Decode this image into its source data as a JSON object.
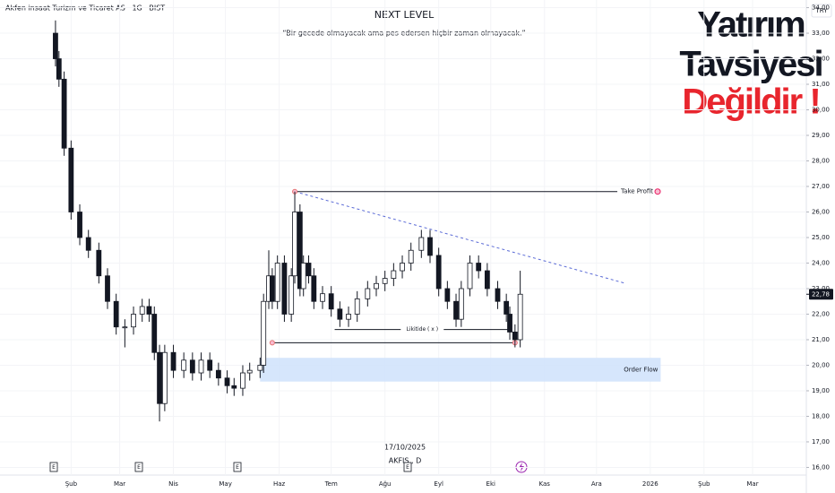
{
  "chart_data": {
    "type": "candlestick",
    "title": "Akfen insaat Turizm ve Ticaret AS · 1G · BIST",
    "headline": "NEXT LEVEL",
    "quote": "“Bir gecede olmayacak ama pes edersen hiçbir zaman olmayacak.”",
    "watermark": [
      "Yatırım",
      "Tavsiyesi",
      "Değildir !"
    ],
    "currency": "TRY",
    "cursor_date": "17/10/2025",
    "symbol": "AKFIS , D",
    "events": [
      "E",
      "E",
      "E",
      "E"
    ],
    "x": [
      23,
      25,
      28,
      32,
      37,
      42,
      48,
      53,
      58,
      63,
      68,
      73,
      77,
      80,
      83,
      86,
      91,
      97,
      102,
      107,
      112,
      117,
      122,
      126,
      131,
      135,
      141,
      143,
      146,
      148,
      151,
      155,
      159,
      161,
      164,
      166,
      169,
      172,
      177,
      182,
      187,
      192,
      197,
      203,
      208,
      213,
      218,
      223,
      228,
      234,
      239,
      244,
      249,
      254,
      257,
      262,
      267,
      272,
      278,
      283,
      285,
      288,
      291
    ],
    "open": [
      33.0,
      32.0,
      31.2,
      28.5,
      26.0,
      25.0,
      24.5,
      23.5,
      22.5,
      21.5,
      21.5,
      22.0,
      22.3,
      22.0,
      20.5,
      18.5,
      20.5,
      19.8,
      20.2,
      19.7,
      20.2,
      19.8,
      19.5,
      19.2,
      19.1,
      19.7,
      19.8,
      20.0,
      22.5,
      23.5,
      22.5,
      24.0,
      22.0,
      23.5,
      26.0,
      23.0,
      24.0,
      23.5,
      22.5,
      22.8,
      22.2,
      21.8,
      22.0,
      22.6,
      23.0,
      23.2,
      23.4,
      23.7,
      24.0,
      24.5,
      25.0,
      24.3,
      23.0,
      22.5,
      21.8,
      23.0,
      24.0,
      23.7,
      23.0,
      22.5,
      22.0,
      21.3,
      21.0
    ],
    "high": [
      33.5,
      32.3,
      31.5,
      28.8,
      26.3,
      25.3,
      24.8,
      23.8,
      22.8,
      21.8,
      22.3,
      22.6,
      22.6,
      22.3,
      20.8,
      20.8,
      20.8,
      20.5,
      20.5,
      20.5,
      20.5,
      20.1,
      19.8,
      19.5,
      20.0,
      20.1,
      20.3,
      22.8,
      24.5,
      23.8,
      24.3,
      24.3,
      23.8,
      26.8,
      26.3,
      24.3,
      24.3,
      23.8,
      23.1,
      23.1,
      22.5,
      22.3,
      22.9,
      23.3,
      23.5,
      23.7,
      24.0,
      24.3,
      24.8,
      25.3,
      25.3,
      24.6,
      23.3,
      22.8,
      23.3,
      24.3,
      24.3,
      24.0,
      23.3,
      22.8,
      22.3,
      21.6,
      23.7
    ],
    "low": [
      31.7,
      30.9,
      28.2,
      25.7,
      24.7,
      24.2,
      23.2,
      22.2,
      21.2,
      20.7,
      21.2,
      21.7,
      21.7,
      20.2,
      17.8,
      18.2,
      19.5,
      19.5,
      19.4,
      19.4,
      19.5,
      19.2,
      18.9,
      18.8,
      18.8,
      19.4,
      19.5,
      19.7,
      22.2,
      22.2,
      22.2,
      21.7,
      21.7,
      23.2,
      22.7,
      22.7,
      23.2,
      22.2,
      22.2,
      21.9,
      21.5,
      21.5,
      21.7,
      22.3,
      22.7,
      22.9,
      23.1,
      23.4,
      23.7,
      24.2,
      24.0,
      22.7,
      22.2,
      21.5,
      21.5,
      22.7,
      23.4,
      22.7,
      22.2,
      21.7,
      21.0,
      20.7,
      20.7
    ],
    "close": [
      32.0,
      31.2,
      28.5,
      26.0,
      25.0,
      24.5,
      23.5,
      22.5,
      21.5,
      21.5,
      22.0,
      22.3,
      22.0,
      20.5,
      18.5,
      20.5,
      19.8,
      20.2,
      19.7,
      20.2,
      19.8,
      19.5,
      19.2,
      19.1,
      19.7,
      19.8,
      20.0,
      22.5,
      23.5,
      22.5,
      24.0,
      22.0,
      23.5,
      26.0,
      23.0,
      24.0,
      23.5,
      22.5,
      22.8,
      22.2,
      21.8,
      22.0,
      22.6,
      23.0,
      23.2,
      23.4,
      23.7,
      24.0,
      24.5,
      25.0,
      24.3,
      23.0,
      22.5,
      21.8,
      23.0,
      24.0,
      23.7,
      23.0,
      22.5,
      22.0,
      21.3,
      21.0,
      22.78
    ],
    "last_price": {
      "value": 22.78,
      "label": "22,78"
    },
    "xlim": [
      -9,
      456
    ],
    "xticks": [
      {
        "value": 32,
        "label": "Şub"
      },
      {
        "value": 60,
        "label": "Mar"
      },
      {
        "value": 91,
        "label": "Nis"
      },
      {
        "value": 121,
        "label": "May"
      },
      {
        "value": 152,
        "label": "Haz"
      },
      {
        "value": 182,
        "label": "Tem"
      },
      {
        "value": 213,
        "label": "Ağu"
      },
      {
        "value": 244,
        "label": "Eyl"
      },
      {
        "value": 274,
        "label": "Eki"
      },
      {
        "value": 305,
        "label": "Kas"
      },
      {
        "value": 335,
        "label": "Ara"
      },
      {
        "value": 366,
        "label": "2026"
      },
      {
        "value": 397,
        "label": "Şub"
      },
      {
        "value": 425,
        "label": "Mar"
      }
    ],
    "ylim": [
      15.7,
      34.3
    ],
    "yticks": [
      {
        "value": 16,
        "label": "16,00"
      },
      {
        "value": 17,
        "label": "17,00"
      },
      {
        "value": 18,
        "label": "18,00"
      },
      {
        "value": 19,
        "label": "19,00"
      },
      {
        "value": 20,
        "label": "20,00"
      },
      {
        "value": 21,
        "label": "21,00"
      },
      {
        "value": 22,
        "label": "22,00"
      },
      {
        "value": 23,
        "label": "23,00"
      },
      {
        "value": 24,
        "label": "24,00"
      },
      {
        "value": 25,
        "label": "25,00"
      },
      {
        "value": 26,
        "label": "26,00"
      },
      {
        "value": 27,
        "label": "27,00"
      },
      {
        "value": 28,
        "label": "28,00"
      },
      {
        "value": 29,
        "label": "29,00"
      },
      {
        "value": 30,
        "label": "30,00"
      },
      {
        "value": 31,
        "label": "31,00"
      },
      {
        "value": 32,
        "label": "32,00"
      },
      {
        "value": 33,
        "label": "33,00"
      },
      {
        "value": 34,
        "label": "34,00"
      }
    ],
    "annotations": {
      "take_profit": {
        "label": "Take Profit",
        "y": 26.8,
        "x": [
          161,
          347
        ]
      },
      "trendline": {
        "x": [
          161,
          352
        ],
        "y": [
          26.8,
          23.2
        ]
      },
      "liquidity": {
        "label": "Likitide ( x )",
        "y": 21.4,
        "x": [
          184,
          285
        ]
      },
      "support": {
        "y": 20.88,
        "x": [
          148,
          288
        ]
      },
      "order_flow": {
        "label": "Order Flow",
        "y": [
          19.36,
          20.29
        ],
        "x": [
          141,
          372
        ]
      }
    }
  }
}
